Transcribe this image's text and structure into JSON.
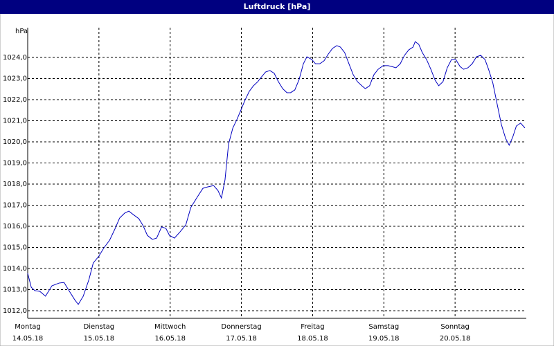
{
  "chart_data": {
    "type": "line",
    "title": "Luftdruck [hPa]",
    "y_label": "hPa",
    "x": [
      0,
      0.05,
      0.1,
      0.17,
      0.25,
      0.34,
      0.44,
      0.51,
      0.58,
      0.66,
      0.71,
      0.78,
      0.86,
      0.92,
      1.0,
      1.07,
      1.15,
      1.22,
      1.29,
      1.36,
      1.42,
      1.48,
      1.56,
      1.62,
      1.68,
      1.75,
      1.81,
      1.88,
      1.94,
      1.99,
      2.06,
      2.14,
      2.22,
      2.29,
      2.38,
      2.46,
      2.53,
      2.61,
      2.67,
      2.72,
      2.77,
      2.82,
      2.88,
      2.94,
      2.99,
      3.05,
      3.11,
      3.17,
      3.23,
      3.29,
      3.34,
      3.4,
      3.46,
      3.52,
      3.58,
      3.64,
      3.69,
      3.75,
      3.81,
      3.87,
      3.92,
      3.99,
      4.04,
      4.1,
      4.16,
      4.22,
      4.28,
      4.34,
      4.39,
      4.45,
      4.51,
      4.57,
      4.63,
      4.69,
      4.74,
      4.8,
      4.86,
      4.92,
      4.99,
      5.06,
      5.11,
      5.17,
      5.23,
      5.29,
      5.35,
      5.41,
      5.44,
      5.49,
      5.54,
      5.6,
      5.66,
      5.72,
      5.77,
      5.83,
      5.89,
      5.95,
      6.01,
      6.07,
      6.12,
      6.18,
      6.24,
      6.3,
      6.36,
      6.42,
      6.47,
      6.53,
      6.59,
      6.65,
      6.71,
      6.76,
      6.81,
      6.86,
      6.92,
      6.98
    ],
    "series": [
      {
        "name": "Luftdruck",
        "color": "#0000c0",
        "values": [
          1013.77,
          1013.11,
          1012.95,
          1012.92,
          1012.69,
          1013.18,
          1013.31,
          1013.34,
          1012.95,
          1012.52,
          1012.3,
          1012.69,
          1013.48,
          1014.26,
          1014.59,
          1014.98,
          1015.34,
          1015.84,
          1016.39,
          1016.62,
          1016.72,
          1016.56,
          1016.36,
          1016.03,
          1015.57,
          1015.38,
          1015.44,
          1015.97,
          1015.9,
          1015.57,
          1015.44,
          1015.74,
          1016.07,
          1016.89,
          1017.38,
          1017.8,
          1017.87,
          1017.93,
          1017.7,
          1017.34,
          1018.2,
          1019.9,
          1020.66,
          1021.08,
          1021.48,
          1021.97,
          1022.39,
          1022.66,
          1022.85,
          1023.11,
          1023.31,
          1023.38,
          1023.25,
          1022.85,
          1022.52,
          1022.33,
          1022.33,
          1022.46,
          1022.95,
          1023.7,
          1024.03,
          1023.9,
          1023.7,
          1023.7,
          1023.84,
          1024.16,
          1024.43,
          1024.56,
          1024.49,
          1024.23,
          1023.7,
          1023.18,
          1022.85,
          1022.66,
          1022.52,
          1022.66,
          1023.18,
          1023.44,
          1023.61,
          1023.61,
          1023.57,
          1023.51,
          1023.7,
          1024.1,
          1024.36,
          1024.49,
          1024.75,
          1024.62,
          1024.23,
          1023.9,
          1023.44,
          1022.92,
          1022.66,
          1022.85,
          1023.51,
          1023.9,
          1023.9,
          1023.57,
          1023.44,
          1023.51,
          1023.7,
          1024.03,
          1024.1,
          1023.9,
          1023.44,
          1022.79,
          1021.8,
          1020.82,
          1020.16,
          1019.84,
          1020.23,
          1020.75,
          1020.89,
          1020.66
        ]
      }
    ],
    "xlim": [
      0,
      7
    ],
    "xticks": [
      {
        "value": 0,
        "label": "Montag",
        "sublabel": "14.05.18"
      },
      {
        "value": 1,
        "label": "Dienstag",
        "sublabel": "15.05.18"
      },
      {
        "value": 2,
        "label": "Mittwoch",
        "sublabel": "16.05.18"
      },
      {
        "value": 3,
        "label": "Donnerstag",
        "sublabel": "17.05.18"
      },
      {
        "value": 4,
        "label": "Freitag",
        "sublabel": "18.05.18"
      },
      {
        "value": 5,
        "label": "Samstag",
        "sublabel": "19.05.18"
      },
      {
        "value": 6,
        "label": "Sonntag",
        "sublabel": "20.05.18"
      }
    ],
    "ylim": [
      1011.64,
      1025.41
    ],
    "yticks": [
      {
        "value": 1012,
        "label": "1012,0"
      },
      {
        "value": 1013,
        "label": "1013,0"
      },
      {
        "value": 1014,
        "label": "1014,0"
      },
      {
        "value": 1015,
        "label": "1015,0"
      },
      {
        "value": 1016,
        "label": "1016,0"
      },
      {
        "value": 1017,
        "label": "1017,0"
      },
      {
        "value": 1018,
        "label": "1018,0"
      },
      {
        "value": 1019,
        "label": "1019,0"
      },
      {
        "value": 1020,
        "label": "1020,0"
      },
      {
        "value": 1021,
        "label": "1021,0"
      },
      {
        "value": 1022,
        "label": "1022,0"
      },
      {
        "value": 1023,
        "label": "1023,0"
      },
      {
        "value": 1024,
        "label": "1024,0"
      }
    ],
    "grid": true
  }
}
